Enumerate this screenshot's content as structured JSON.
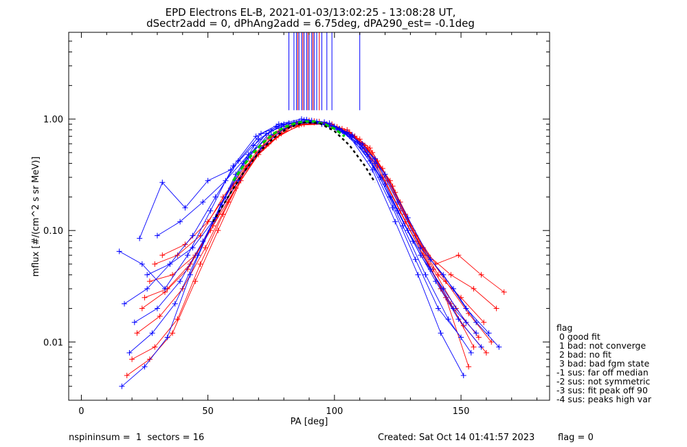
{
  "chart_data": {
    "type": "line",
    "title": "EPD Electrons EL-B, 2021-01-03/13:02:25 - 13:08:28 UT,",
    "subtitle": "dSectr2add = 0, dPhAng2add = 6.75deg, dPA290_est=  -0.1deg",
    "xlabel": "PA [deg]",
    "ylabel": "mflux [#/(cm^2 s sr MeV)]",
    "xlim": [
      -5,
      185
    ],
    "ylim": [
      0.003,
      6.0
    ],
    "yscale": "log",
    "xticks": [
      0,
      50,
      100,
      150
    ],
    "yticks": [
      0.01,
      0.1,
      1.0
    ],
    "ytick_labels": [
      "0.01",
      "0.10",
      "1.00"
    ],
    "series": [
      {
        "color": "#ff0000",
        "style": "line+cross",
        "x": [
          22,
          31,
          40,
          49,
          58,
          67,
          76,
          85,
          94,
          103,
          112,
          121,
          130,
          139,
          148,
          157
        ],
        "y": [
          0.012,
          0.017,
          0.03,
          0.07,
          0.18,
          0.42,
          0.72,
          0.92,
          0.95,
          0.82,
          0.58,
          0.28,
          0.11,
          0.045,
          0.02,
          0.011
        ]
      },
      {
        "color": "#ff0000",
        "style": "line+cross",
        "x": [
          24,
          33,
          42,
          51,
          60,
          69,
          78,
          87,
          96,
          105,
          114,
          123,
          132,
          141,
          150,
          159
        ],
        "y": [
          0.02,
          0.028,
          0.045,
          0.1,
          0.25,
          0.5,
          0.78,
          0.9,
          0.92,
          0.8,
          0.55,
          0.25,
          0.09,
          0.04,
          0.025,
          0.015
        ]
      },
      {
        "color": "#ff0000",
        "style": "line+cross",
        "x": [
          27,
          36,
          45,
          54,
          63,
          72,
          81,
          90,
          99,
          108,
          117,
          126,
          135,
          144,
          153,
          162
        ],
        "y": [
          0.035,
          0.04,
          0.06,
          0.14,
          0.3,
          0.55,
          0.82,
          0.95,
          0.88,
          0.7,
          0.42,
          0.18,
          0.07,
          0.035,
          0.018,
          0.01
        ]
      },
      {
        "color": "#ff0000",
        "style": "line+cross",
        "x": [
          20,
          29,
          38,
          47,
          56,
          65,
          74,
          83,
          92,
          101,
          110,
          119,
          128,
          137,
          146,
          155
        ],
        "y": [
          0.007,
          0.009,
          0.016,
          0.05,
          0.14,
          0.36,
          0.68,
          0.88,
          0.96,
          0.85,
          0.62,
          0.3,
          0.12,
          0.05,
          0.022,
          0.009
        ]
      },
      {
        "color": "#ff0000",
        "style": "line+cross",
        "x": [
          29,
          38,
          47,
          56,
          65,
          74,
          83,
          92,
          101,
          110,
          119,
          128,
          137,
          146,
          155,
          164
        ],
        "y": [
          0.05,
          0.06,
          0.09,
          0.2,
          0.38,
          0.6,
          0.85,
          0.93,
          0.84,
          0.66,
          0.36,
          0.14,
          0.06,
          0.04,
          0.03,
          0.02
        ]
      },
      {
        "color": "#ff0000",
        "style": "line+cross",
        "x": [
          25,
          34,
          43,
          52,
          61,
          70,
          79,
          88,
          97,
          106,
          115,
          124,
          133,
          142,
          151,
          160
        ],
        "y": [
          0.025,
          0.03,
          0.05,
          0.11,
          0.24,
          0.48,
          0.74,
          0.9,
          0.9,
          0.76,
          0.5,
          0.22,
          0.08,
          0.03,
          0.014,
          0.008
        ]
      },
      {
        "color": "#ff0000",
        "style": "line+cross",
        "x": [
          18,
          27,
          36,
          45,
          54,
          63,
          72,
          81,
          90,
          99,
          108,
          117,
          126,
          135,
          144,
          153
        ],
        "y": [
          0.005,
          0.007,
          0.012,
          0.035,
          0.1,
          0.28,
          0.58,
          0.85,
          0.97,
          0.9,
          0.7,
          0.38,
          0.15,
          0.06,
          0.025,
          0.006
        ]
      },
      {
        "color": "#ff0000",
        "style": "line+cross",
        "x": [
          32,
          41,
          50,
          59,
          68,
          77,
          86,
          95,
          104,
          113,
          122,
          131,
          140,
          149,
          158,
          167
        ],
        "y": [
          0.06,
          0.075,
          0.12,
          0.24,
          0.44,
          0.68,
          0.88,
          0.9,
          0.78,
          0.55,
          0.28,
          0.1,
          0.05,
          0.06,
          0.04,
          0.028
        ]
      },
      {
        "color": "#0000ff",
        "style": "line+cross",
        "x": [
          16,
          25,
          34,
          43,
          52,
          61,
          70,
          79,
          88,
          97,
          106,
          115,
          124,
          133,
          142,
          151
        ],
        "y": [
          0.004,
          0.006,
          0.011,
          0.04,
          0.12,
          0.32,
          0.66,
          0.88,
          0.98,
          0.9,
          0.7,
          0.35,
          0.12,
          0.04,
          0.012,
          0.005
        ]
      },
      {
        "color": "#0000ff",
        "style": "line+cross",
        "x": [
          19,
          28,
          37,
          46,
          55,
          64,
          73,
          82,
          91,
          100,
          109,
          118,
          127,
          136,
          145,
          154
        ],
        "y": [
          0.008,
          0.012,
          0.022,
          0.06,
          0.17,
          0.4,
          0.74,
          0.92,
          0.97,
          0.86,
          0.62,
          0.3,
          0.11,
          0.04,
          0.016,
          0.008
        ]
      },
      {
        "color": "#0000ff",
        "style": "line+cross",
        "x": [
          21,
          30,
          39,
          48,
          57,
          66,
          75,
          84,
          93,
          102,
          111,
          120,
          129,
          138,
          147,
          156
        ],
        "y": [
          0.015,
          0.02,
          0.035,
          0.08,
          0.2,
          0.45,
          0.78,
          0.93,
          0.95,
          0.82,
          0.56,
          0.26,
          0.1,
          0.045,
          0.02,
          0.012
        ]
      },
      {
        "color": "#0000ff",
        "style": "line+cross",
        "x": [
          23,
          32,
          41,
          50,
          59,
          68,
          77,
          86,
          95,
          104,
          113,
          122,
          131,
          140,
          149,
          158
        ],
        "y": [
          0.085,
          0.27,
          0.16,
          0.28,
          0.35,
          0.58,
          0.86,
          0.95,
          0.9,
          0.74,
          0.48,
          0.2,
          0.08,
          0.035,
          0.016,
          0.009
        ]
      },
      {
        "color": "#0000ff",
        "style": "line+cross",
        "x": [
          17,
          26,
          35,
          44,
          53,
          62,
          71,
          80,
          89,
          98,
          107,
          116,
          125,
          134,
          143,
          152
        ],
        "y": [
          0.022,
          0.03,
          0.05,
          0.09,
          0.2,
          0.42,
          0.74,
          0.9,
          0.99,
          0.92,
          0.72,
          0.4,
          0.15,
          0.06,
          0.03,
          0.015
        ]
      },
      {
        "color": "#0000ff",
        "style": "line+cross",
        "x": [
          26,
          35,
          44,
          53,
          62,
          71,
          80,
          89,
          98,
          107,
          116,
          125,
          134,
          143,
          152,
          161
        ],
        "y": [
          0.04,
          0.05,
          0.07,
          0.13,
          0.28,
          0.55,
          0.82,
          0.96,
          0.88,
          0.7,
          0.44,
          0.18,
          0.07,
          0.04,
          0.02,
          0.012
        ]
      },
      {
        "color": "#0000ff",
        "style": "line+cross",
        "x": [
          15,
          24,
          33,
          42,
          51,
          60,
          69,
          78,
          87,
          96,
          105,
          114,
          123,
          132,
          141,
          150
        ],
        "y": [
          0.065,
          0.05,
          0.03,
          0.06,
          0.15,
          0.38,
          0.7,
          0.9,
          1.0,
          0.94,
          0.76,
          0.42,
          0.16,
          0.055,
          0.02,
          0.011
        ]
      },
      {
        "color": "#0000ff",
        "style": "line+cross",
        "x": [
          30,
          39,
          48,
          57,
          66,
          75,
          84,
          93,
          102,
          111,
          120,
          129,
          138,
          147,
          156,
          165
        ],
        "y": [
          0.09,
          0.12,
          0.18,
          0.28,
          0.48,
          0.72,
          0.9,
          0.94,
          0.82,
          0.6,
          0.32,
          0.13,
          0.055,
          0.03,
          0.015,
          0.009
        ]
      }
    ],
    "fit_curves": [
      {
        "color": "#00cc00",
        "style": "dashed",
        "x": [
          60,
          64,
          68,
          72,
          76,
          80,
          84,
          88,
          92,
          96,
          100,
          104
        ],
        "y": [
          0.28,
          0.38,
          0.5,
          0.62,
          0.74,
          0.84,
          0.91,
          0.95,
          0.95,
          0.9,
          0.82,
          0.7
        ]
      },
      {
        "color": "#000000",
        "style": "dashed",
        "x": [
          52,
          58,
          64,
          70,
          76,
          82,
          88,
          94,
          100,
          106,
          112,
          116
        ],
        "y": [
          0.12,
          0.2,
          0.33,
          0.5,
          0.68,
          0.84,
          0.93,
          0.92,
          0.78,
          0.58,
          0.38,
          0.27
        ]
      }
    ],
    "top_lines": {
      "blue_x": [
        82,
        84,
        85,
        86,
        87,
        88,
        89,
        90,
        91,
        92,
        93,
        95,
        97,
        99,
        110
      ],
      "red_x": [
        85.5,
        87.5,
        89.5,
        91.5,
        94
      ],
      "y_from": 1.2,
      "y_to": 6.0
    },
    "legend": {
      "placement": "right",
      "title": "flag",
      "entries": [
        " 0 good fit",
        " 1 bad: not converge",
        " 2 bad: no fit",
        " 3 bad: bad fgm state",
        "-1 sus: far off median",
        "-2 sus: not symmetric",
        "-3 sus: fit peak off 90",
        "-4 sus: peaks high var"
      ]
    }
  },
  "footer": {
    "left": "nspininsum =  1  sectors = 16",
    "created": "Created: Sat Oct 14 01:41:57 2023",
    "flag": "flag = 0"
  }
}
